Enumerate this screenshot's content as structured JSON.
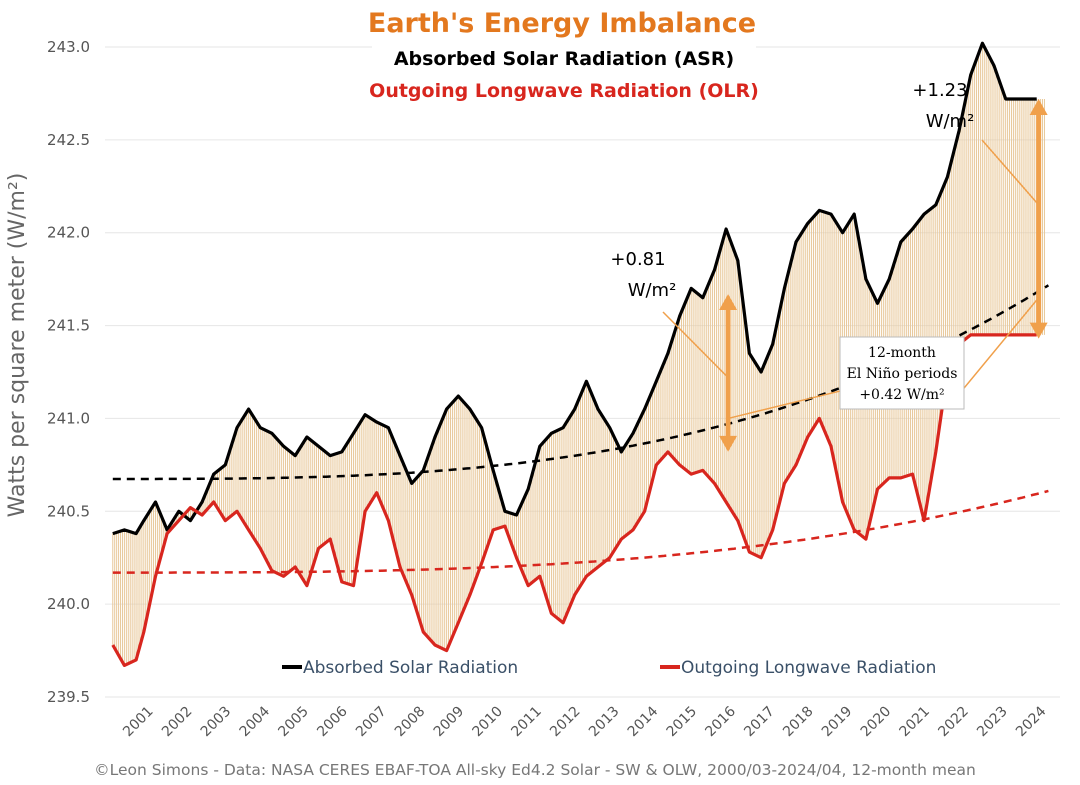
{
  "chart_data": {
    "type": "line",
    "title": "Earth's Energy Imbalance",
    "subtitle_asr": "Absorbed Solar Radiation (ASR)",
    "subtitle_olr": "Outgoing Longwave Radiation (OLR)",
    "ylabel": "Watts per square meter (W/m²)",
    "ylim": [
      239.5,
      243.0
    ],
    "yticks": [
      "239.5",
      "240.0",
      "240.5",
      "241.0",
      "241.5",
      "242.0",
      "242.5",
      "243.0"
    ],
    "x_start_year": 2001,
    "xticks": [
      "2001",
      "2002",
      "2003",
      "2004",
      "2005",
      "2006",
      "2007",
      "2008",
      "2009",
      "2010",
      "2011",
      "2012",
      "2013",
      "2014",
      "2015",
      "2016",
      "2017",
      "2018",
      "2019",
      "2020",
      "2021",
      "2022",
      "2023",
      "2024"
    ],
    "grid": true,
    "legend_position": "bottom",
    "series": [
      {
        "name": "Absorbed Solar Radiation",
        "color": "#000000",
        "x": [
          2000.2,
          2000.5,
          2000.8,
          2001.0,
          2001.3,
          2001.6,
          2001.9,
          2002.2,
          2002.5,
          2002.8,
          2003.1,
          2003.4,
          2003.7,
          2004.0,
          2004.3,
          2004.6,
          2004.9,
          2005.2,
          2005.5,
          2005.8,
          2006.1,
          2006.4,
          2006.7,
          2007.0,
          2007.3,
          2007.6,
          2007.9,
          2008.2,
          2008.5,
          2008.8,
          2009.1,
          2009.4,
          2009.7,
          2010.0,
          2010.3,
          2010.6,
          2010.9,
          2011.2,
          2011.5,
          2011.8,
          2012.1,
          2012.4,
          2012.7,
          2013.0,
          2013.3,
          2013.6,
          2013.9,
          2014.2,
          2014.5,
          2014.8,
          2015.1,
          2015.4,
          2015.7,
          2016.0,
          2016.3,
          2016.6,
          2016.9,
          2017.2,
          2017.5,
          2017.8,
          2018.1,
          2018.4,
          2018.7,
          2019.0,
          2019.3,
          2019.6,
          2019.9,
          2020.2,
          2020.5,
          2020.8,
          2021.1,
          2021.4,
          2021.7,
          2022.0,
          2022.3,
          2022.6,
          2022.9,
          2023.2,
          2023.5,
          2023.8,
          2024.0,
          2024.3
        ],
        "values": [
          240.38,
          240.4,
          240.38,
          240.45,
          240.55,
          240.4,
          240.5,
          240.45,
          240.55,
          240.7,
          240.75,
          240.95,
          241.05,
          240.95,
          240.92,
          240.85,
          240.8,
          240.9,
          240.85,
          240.8,
          240.82,
          240.92,
          241.02,
          240.98,
          240.95,
          240.8,
          240.65,
          240.72,
          240.9,
          241.05,
          241.12,
          241.05,
          240.95,
          240.72,
          240.5,
          240.48,
          240.62,
          240.85,
          240.92,
          240.95,
          241.05,
          241.2,
          241.05,
          240.95,
          240.82,
          240.92,
          241.05,
          241.2,
          241.35,
          241.55,
          241.7,
          241.65,
          241.8,
          242.02,
          241.85,
          241.35,
          241.25,
          241.4,
          241.7,
          241.95,
          242.05,
          242.12,
          242.1,
          242.0,
          242.1,
          241.75,
          241.62,
          241.75,
          241.95,
          242.02,
          242.1,
          242.15,
          242.3,
          242.55,
          242.85,
          243.02,
          242.9,
          242.72,
          242.72,
          242.72,
          242.72,
          242.72
        ]
      },
      {
        "name": "Outgoing Longwave Radiation",
        "color": "#d8261e",
        "x": [
          2000.2,
          2000.5,
          2000.8,
          2001.0,
          2001.3,
          2001.6,
          2001.9,
          2002.2,
          2002.5,
          2002.8,
          2003.1,
          2003.4,
          2003.7,
          2004.0,
          2004.3,
          2004.6,
          2004.9,
          2005.2,
          2005.5,
          2005.8,
          2006.1,
          2006.4,
          2006.7,
          2007.0,
          2007.3,
          2007.6,
          2007.9,
          2008.2,
          2008.5,
          2008.8,
          2009.1,
          2009.4,
          2009.7,
          2010.0,
          2010.3,
          2010.6,
          2010.9,
          2011.2,
          2011.5,
          2011.8,
          2012.1,
          2012.4,
          2012.7,
          2013.0,
          2013.3,
          2013.6,
          2013.9,
          2014.2,
          2014.5,
          2014.8,
          2015.1,
          2015.4,
          2015.7,
          2016.0,
          2016.3,
          2016.6,
          2016.9,
          2017.2,
          2017.5,
          2017.8,
          2018.1,
          2018.4,
          2018.7,
          2019.0,
          2019.3,
          2019.6,
          2019.9,
          2020.2,
          2020.5,
          2020.8,
          2021.1,
          2021.4,
          2021.7,
          2022.0,
          2022.3,
          2022.6,
          2022.9,
          2023.2,
          2023.5,
          2023.8,
          2024.0,
          2024.3
        ],
        "values": [
          239.78,
          239.67,
          239.7,
          239.85,
          240.15,
          240.38,
          240.45,
          240.52,
          240.48,
          240.55,
          240.45,
          240.5,
          240.4,
          240.3,
          240.18,
          240.15,
          240.2,
          240.1,
          240.3,
          240.35,
          240.12,
          240.1,
          240.5,
          240.6,
          240.45,
          240.2,
          240.05,
          239.85,
          239.78,
          239.75,
          239.9,
          240.05,
          240.22,
          240.4,
          240.42,
          240.25,
          240.1,
          240.15,
          239.95,
          239.9,
          240.05,
          240.15,
          240.2,
          240.25,
          240.35,
          240.4,
          240.5,
          240.75,
          240.82,
          240.75,
          240.7,
          240.72,
          240.65,
          240.55,
          240.45,
          240.28,
          240.25,
          240.4,
          240.65,
          240.75,
          240.9,
          241.0,
          240.85,
          240.55,
          240.4,
          240.35,
          240.62,
          240.68,
          240.68,
          240.7,
          240.45,
          240.82,
          241.25,
          241.4,
          241.45,
          241.45,
          241.45,
          241.45,
          241.45,
          241.45,
          241.45,
          241.45
        ]
      }
    ],
    "trend_asr": {
      "a": 240.674,
      "b": 7.45e-05,
      "c": 3
    },
    "trend_olr": {
      "a": 240.17,
      "b": 3.14e-05,
      "c": 3
    },
    "annotations": {
      "arrow1_label_line1": "+0.81",
      "arrow1_label_line2": "W/m²",
      "arrow2_label_line1": "+1.23",
      "arrow2_label_line2": "W/m²",
      "box_line1": "12-month",
      "box_line2": "El Niño periods",
      "box_line3": "+0.42 W/m²"
    },
    "footer": "©Leon Simons - Data: NASA CERES EBAF-TOA All-sky Ed4.2 Solar - SW & OLW, 2000/03-2024/04, 12-month mean",
    "colors": {
      "asr": "#000000",
      "olr": "#d8261e",
      "fill": "#e8c89a",
      "accent": "#f0a04b",
      "title": "#e3781e"
    }
  }
}
